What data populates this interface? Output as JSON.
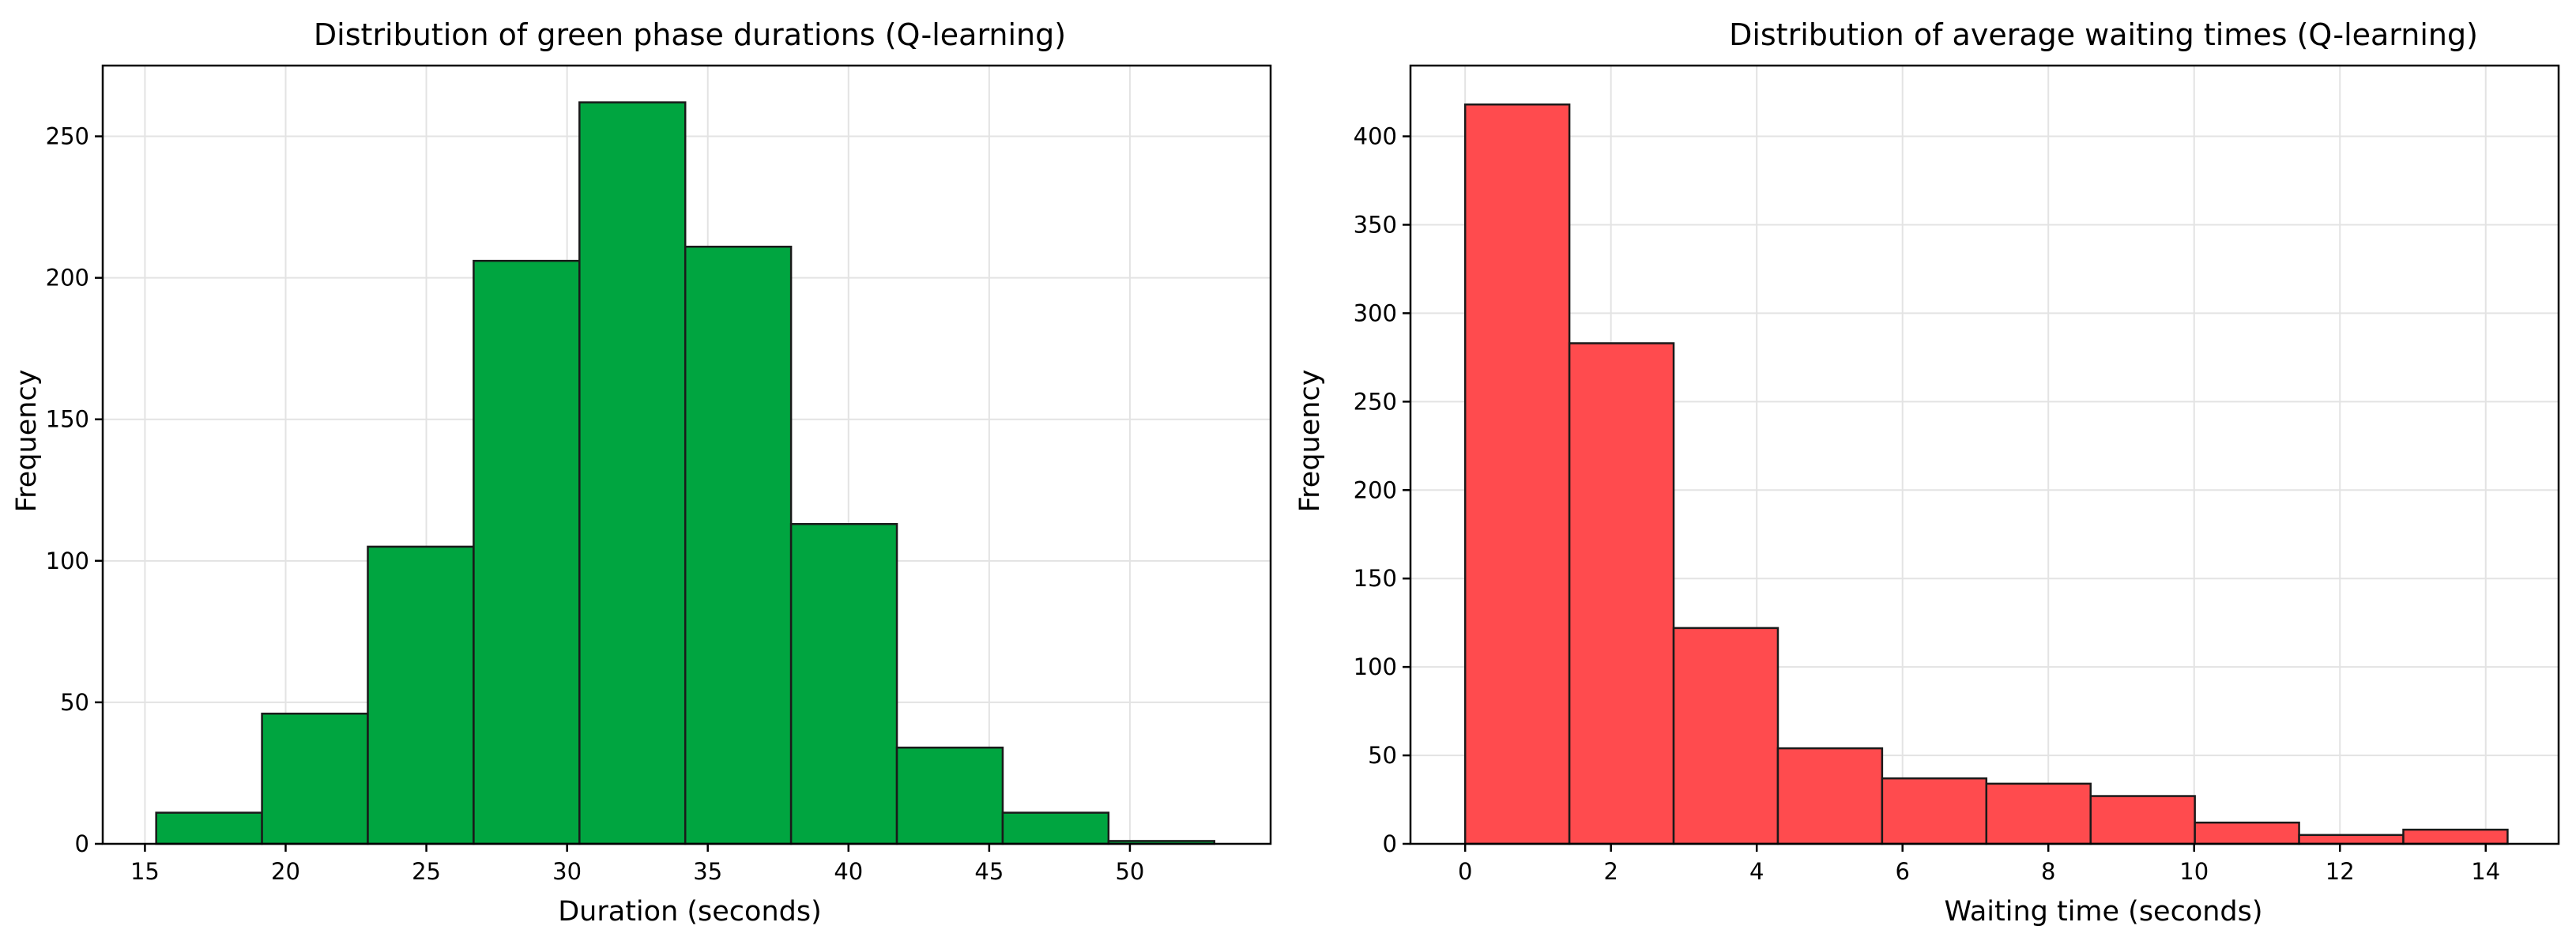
{
  "chart_data": [
    {
      "type": "bar",
      "title": "Distribution of green phase durations (Q-learning)",
      "xlabel": "Duration (seconds)",
      "ylabel": "Frequency",
      "bin_edges": [
        15.4,
        19.16,
        22.92,
        26.68,
        30.44,
        34.2,
        37.96,
        41.72,
        45.48,
        49.24,
        53.0
      ],
      "values": [
        11,
        46,
        105,
        206,
        262,
        211,
        113,
        34,
        11,
        1
      ],
      "xlim": [
        13.5,
        55.0
      ],
      "ylim": [
        0,
        275
      ],
      "xticks": [
        15,
        20,
        25,
        30,
        35,
        40,
        45,
        50
      ],
      "yticks": [
        0,
        50,
        100,
        150,
        200,
        250
      ],
      "color": "#00a540",
      "grid": true
    },
    {
      "type": "bar",
      "title": "Distribution of average waiting times (Q-learning)",
      "xlabel": "Waiting time (seconds)",
      "ylabel": "Frequency",
      "bin_edges": [
        0.0,
        1.43,
        2.86,
        4.29,
        5.72,
        7.15,
        8.58,
        10.01,
        11.44,
        12.87,
        14.3
      ],
      "values": [
        418,
        283,
        122,
        54,
        37,
        34,
        27,
        12,
        5,
        8
      ],
      "xlim": [
        -0.75,
        15.0
      ],
      "ylim": [
        0,
        440
      ],
      "xticks": [
        0,
        2,
        4,
        6,
        8,
        10,
        12,
        14
      ],
      "yticks": [
        0,
        50,
        100,
        150,
        200,
        250,
        300,
        350,
        400
      ],
      "color": "#ff4b4e",
      "grid": true
    }
  ]
}
